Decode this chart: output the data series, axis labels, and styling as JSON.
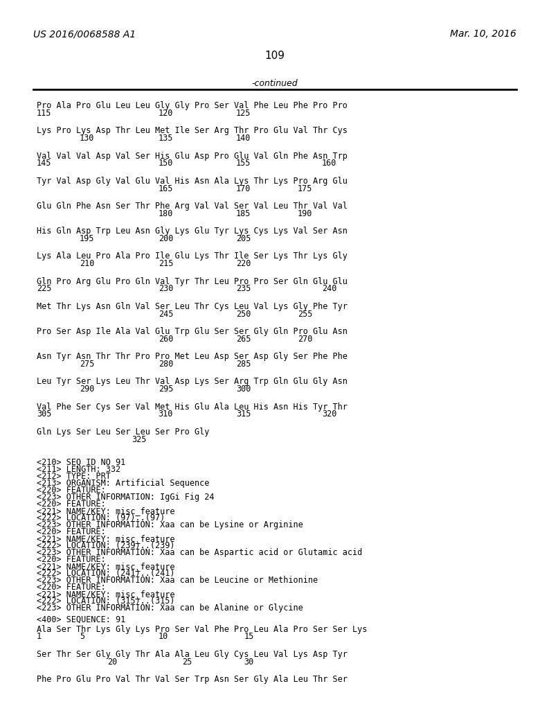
{
  "patent_number": "US 2016/0068588 A1",
  "date": "Mar. 10, 2016",
  "page_number": "109",
  "continued_label": "-continued",
  "background_color": "#ffffff",
  "text_color": "#000000",
  "sequence_blocks": [
    {
      "aa_line": "Pro Ala Pro Glu Leu Leu Gly Gly Pro Ser Val Phe Leu Phe Pro Pro",
      "num_line": [
        [
          "115",
          "center1"
        ],
        [
          "120",
          "center2"
        ],
        [
          "125",
          "center3"
        ]
      ],
      "indent": false
    },
    {
      "aa_line": "Lys Pro Lys Asp Thr Leu Met Ile Ser Arg Thr Pro Glu Val Thr Cys",
      "num_line": [
        [
          "130",
          "indent1"
        ],
        [
          "135",
          "center2"
        ],
        [
          "140",
          "center3"
        ]
      ],
      "indent": false
    },
    {
      "aa_line": "Val Val Val Asp Val Ser His Glu Asp Pro Glu Val Gln Phe Asn Trp",
      "num_line": [
        [
          "145",
          "left0"
        ],
        [
          "150",
          "center2"
        ],
        [
          "155",
          "center3"
        ],
        [
          "160",
          "right5"
        ]
      ],
      "indent": false
    },
    {
      "aa_line": "Tyr Val Asp Gly Val Glu Val His Asn Ala Lys Thr Lys Pro Arg Glu",
      "num_line": [
        [
          "165",
          "center2"
        ],
        [
          "170",
          "center3"
        ],
        [
          "175",
          "center4"
        ]
      ],
      "indent": false
    },
    {
      "aa_line": "Glu Gln Phe Asn Ser Thr Phe Arg Val Val Ser Val Leu Thr Val Val",
      "num_line": [
        [
          "180",
          "center2"
        ],
        [
          "185",
          "center3"
        ],
        [
          "190",
          "center4"
        ]
      ],
      "indent": false
    },
    {
      "aa_line": "His Gln Asp Trp Leu Asn Gly Lys Glu Tyr Lys Cys Lys Val Ser Asn",
      "num_line": [
        [
          "195",
          "indent1"
        ],
        [
          "200",
          "center2"
        ],
        [
          "205",
          "center3"
        ]
      ],
      "indent": false
    },
    {
      "aa_line": "Lys Ala Leu Pro Ala Pro Ile Glu Lys Thr Ile Ser Lys Thr Lys Gly",
      "num_line": [
        [
          "210",
          "indent1"
        ],
        [
          "215",
          "center2"
        ],
        [
          "220",
          "center3"
        ]
      ],
      "indent": false
    },
    {
      "aa_line": "Gln Pro Arg Glu Pro Gln Val Tyr Thr Leu Pro Pro Ser Gln Glu Glu",
      "num_line": [
        [
          "225",
          "left0"
        ],
        [
          "230",
          "center2"
        ],
        [
          "235",
          "center3"
        ],
        [
          "240",
          "right5"
        ]
      ],
      "indent": false
    },
    {
      "aa_line": "Met Thr Lys Asn Gln Val Ser Leu Thr Cys Leu Val Lys Gly Phe Tyr",
      "num_line": [
        [
          "245",
          "center2"
        ],
        [
          "250",
          "center3"
        ],
        [
          "255",
          "center4"
        ]
      ],
      "indent": false
    },
    {
      "aa_line": "Pro Ser Asp Ile Ala Val Glu Trp Glu Ser Ser Gly Gln Pro Glu Asn",
      "num_line": [
        [
          "260",
          "center2"
        ],
        [
          "265",
          "center3"
        ],
        [
          "270",
          "center4"
        ]
      ],
      "indent": false
    },
    {
      "aa_line": "Asn Tyr Asn Thr Thr Pro Pro Met Leu Asp Ser Asp Gly Ser Phe Phe",
      "num_line": [
        [
          "275",
          "indent1"
        ],
        [
          "280",
          "center2"
        ],
        [
          "285",
          "center3"
        ]
      ],
      "indent": false
    },
    {
      "aa_line": "Leu Tyr Ser Lys Leu Thr Val Asp Lys Ser Arg Trp Gln Glu Gly Asn",
      "num_line": [
        [
          "290",
          "indent1"
        ],
        [
          "295",
          "center2"
        ],
        [
          "300",
          "center3"
        ]
      ],
      "indent": false
    },
    {
      "aa_line": "Val Phe Ser Cys Ser Val Met His Glu Ala Leu His Asn His Tyr Thr",
      "num_line": [
        [
          "305",
          "left0"
        ],
        [
          "310",
          "center2"
        ],
        [
          "315",
          "center3"
        ],
        [
          "320",
          "right5"
        ]
      ],
      "indent": false
    },
    {
      "aa_line": "Gln Lys Ser Leu Ser Leu Ser Pro Gly",
      "num_line": [
        [
          "325",
          "center2short"
        ]
      ],
      "indent": false
    }
  ],
  "metadata_lines": [
    "<210> SEQ ID NO 91",
    "<211> LENGTH: 332",
    "<212> TYPE: PRT",
    "<213> ORGANISM: Artificial Sequence",
    "<220> FEATURE:",
    "<223> OTHER INFORMATION: IgGi Fig 24",
    "<220> FEATURE:",
    "<221> NAME/KEY: misc_feature",
    "<222> LOCATION: (97)..(97)",
    "<223> OTHER INFORMATION: Xaa can be Lysine or Arginine",
    "<220> FEATURE:",
    "<221> NAME/KEY: misc_feature",
    "<222> LOCATION: (239)..(239)",
    "<223> OTHER INFORMATION: Xaa can be Aspartic acid or Glutamic acid",
    "<220> FEATURE:",
    "<221> NAME/KEY: misc_feature",
    "<222> LOCATION: (241)..(241)",
    "<223> OTHER INFORMATION: Xaa can be Leucine or Methionine",
    "<220> FEATURE:",
    "<221> NAME/KEY: misc_feature",
    "<222> LOCATION: (315)..(315)",
    "<223> OTHER INFORMATION: Xaa can be Alanine or Glycine"
  ],
  "sequence_label": "<400> SEQUENCE: 91",
  "end_blocks": [
    {
      "aa_line": "Ala Ser Thr Lys Gly Lys Pro Ser Val Phe Pro Leu Ala Pro Ser Ser Lys",
      "num_line": [
        [
          "1",
          "far_left"
        ],
        [
          "5",
          "n5"
        ],
        [
          "10",
          "n10"
        ],
        [
          "15",
          "n15"
        ]
      ]
    },
    {
      "aa_line": "Ser Thr Ser Gly Gly Thr Ala Ala Leu Gly Cys Leu Val Lys Asp Tyr",
      "num_line": [
        [
          "20",
          "n20"
        ],
        [
          "25",
          "n25"
        ],
        [
          "30",
          "n30"
        ]
      ]
    },
    {
      "aa_line": "Phe Pro Glu Pro Val Thr Val Ser Trp Asn Ser Gly Ala Leu Thr Ser",
      "num_line": []
    }
  ]
}
